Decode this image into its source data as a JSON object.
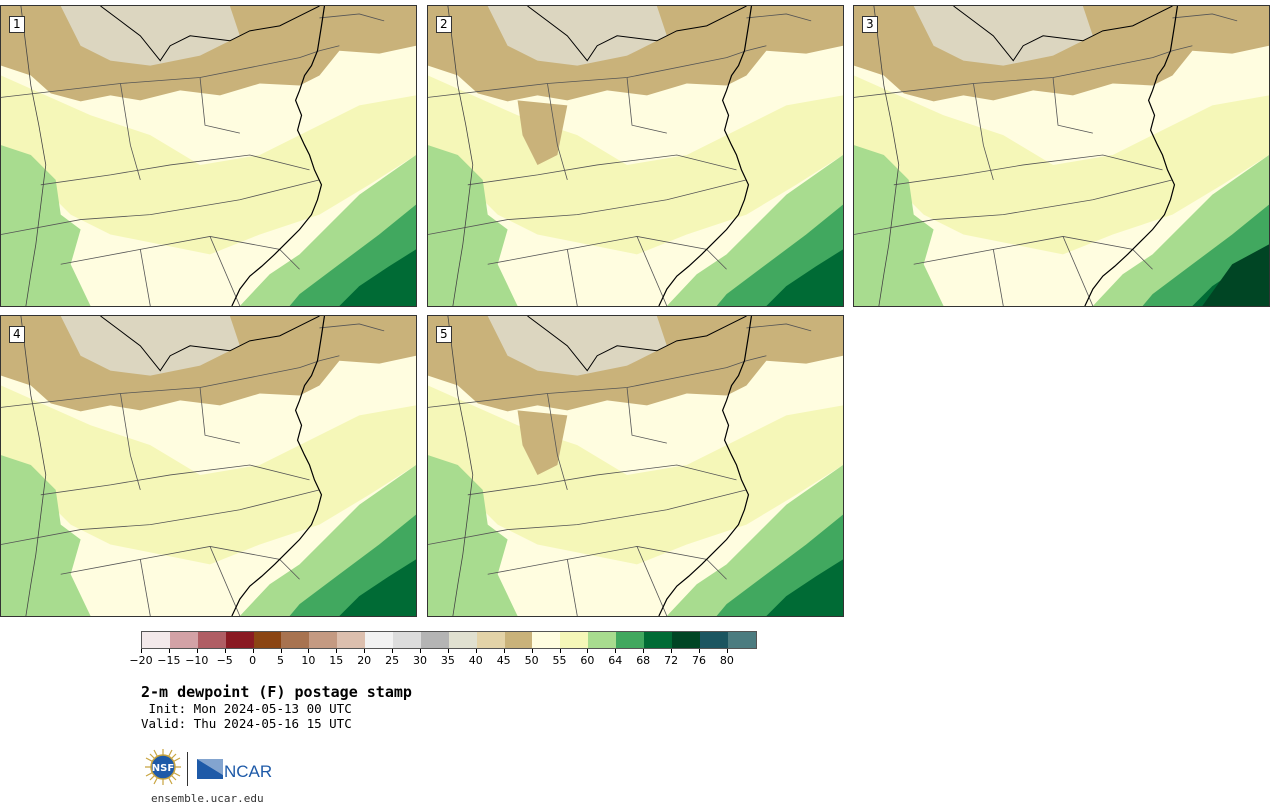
{
  "colors": {
    "fill_20_35": "#dcd6c0",
    "fill_45_50": "#c9b27a",
    "fill_50_55": "#fffde0",
    "fill_55_60": "#f5f7b8",
    "fill_60_64": "#a8dc8f",
    "fill_64_68": "#41a85f",
    "fill_68_72": "#006b35",
    "fill_72_76": "#004524",
    "border": "#000000"
  },
  "panels": [
    {
      "label": "1"
    },
    {
      "label": "2"
    },
    {
      "label": "3"
    },
    {
      "label": "4"
    },
    {
      "label": "5"
    }
  ],
  "colorbar": {
    "colors": [
      "#f3e9ea",
      "#d3a2a6",
      "#b05e64",
      "#8a1a22",
      "#8b4513",
      "#a87350",
      "#c49a82",
      "#dcbfae",
      "#f2f2f2",
      "#dcdcdc",
      "#b4b4b4",
      "#e0e0d0",
      "#e3d3a8",
      "#c9b27a",
      "#fffde0",
      "#f5f7b8",
      "#a8dc8f",
      "#41a85f",
      "#006b35",
      "#004524",
      "#1b5560",
      "#4c7c80"
    ],
    "tick_labels": [
      "−20",
      "−15",
      "−10",
      "−5",
      "0",
      "5",
      "10",
      "15",
      "20",
      "25",
      "30",
      "35",
      "40",
      "45",
      "50",
      "55",
      "60",
      "64",
      "68",
      "72",
      "76",
      "80"
    ]
  },
  "title": "2-m dewpoint (F) postage stamp",
  "init_line": " Init: Mon 2024-05-13 00 UTC",
  "valid_line": "Valid: Thu 2024-05-16 15 UTC",
  "logos": {
    "nsf_text": "NSF",
    "ncar_text": "NCAR"
  },
  "site_url": "ensemble.ucar.edu"
}
